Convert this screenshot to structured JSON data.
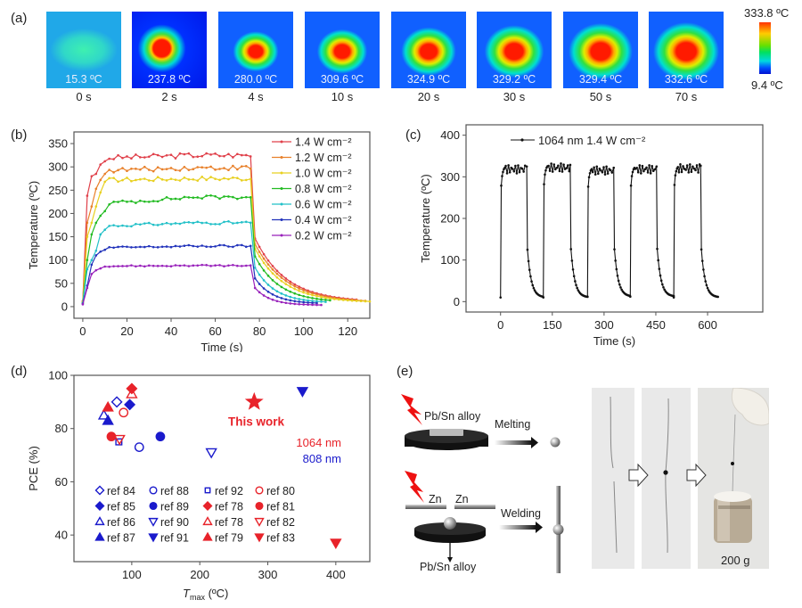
{
  "panels": {
    "a": {
      "label": "(a)",
      "frames": [
        {
          "temp": "15.3 ºC",
          "time": "0 s",
          "state": "ambient"
        },
        {
          "temp": "237.8 ºC",
          "time": "2 s",
          "state": "hot"
        },
        {
          "temp": "280.0 ºC",
          "time": "4 s",
          "state": "hot"
        },
        {
          "temp": "309.6 ºC",
          "time": "10 s",
          "state": "hot"
        },
        {
          "temp": "324.9 ºC",
          "time": "20 s",
          "state": "hot"
        },
        {
          "temp": "329.2 ºC",
          "time": "30 s",
          "state": "hot"
        },
        {
          "temp": "329.4 ºC",
          "time": "50 s",
          "state": "hot"
        },
        {
          "temp": "332.6 ºC",
          "time": "70 s",
          "state": "hot"
        }
      ],
      "colorbar": {
        "max_label": "333.8 ºC",
        "min_label": "9.4 ºC",
        "colors": [
          "#ff2a00",
          "#ffcc00",
          "#55e000",
          "#00d8d0",
          "#0018e0"
        ]
      }
    },
    "b": {
      "label": "(b)"
    },
    "c": {
      "label": "(c)"
    },
    "d": {
      "label": "(d)"
    },
    "e": {
      "label": "(e)",
      "top_material": "Pb/Sn alloy",
      "melting": "Melting",
      "zn_left": "Zn",
      "zn_right": "Zn",
      "welding": "Welding",
      "bottom_material": "Pb/Sn alloy",
      "weight_label": "200 g",
      "laser_color": "#ee1111"
    }
  },
  "chart_data": [
    {
      "id": "b",
      "type": "line",
      "title": "",
      "xlabel": "Time (s)",
      "ylabel": "Temperature (ºC)",
      "xlim": [
        -4,
        130
      ],
      "ylim": [
        -25,
        375
      ],
      "xticks": [
        0,
        20,
        40,
        60,
        80,
        100,
        120
      ],
      "yticks": [
        0,
        50,
        100,
        150,
        200,
        250,
        300,
        350
      ],
      "legend_position": "top-right",
      "series": [
        {
          "name": "1.4 W cm⁻²",
          "color": "#e0404a",
          "plateau": 325,
          "rise": [
            12,
            238,
            280,
            285,
            305,
            312
          ],
          "decay_end": 124,
          "decay_final": 10,
          "decay_tau": 14
        },
        {
          "name": "1.2 W cm⁻²",
          "color": "#e8802a",
          "plateau": 298,
          "rise": [
            10,
            180,
            215,
            253,
            272,
            285
          ],
          "decay_end": 128,
          "decay_final": 9,
          "decay_tau": 14
        },
        {
          "name": "1.0 W cm⁻²",
          "color": "#e8d020",
          "plateau": 275,
          "rise": [
            10,
            150,
            180,
            215,
            245,
            268
          ],
          "decay_end": 130,
          "decay_final": 9,
          "decay_tau": 13
        },
        {
          "name": "0.8 W cm⁻²",
          "color": "#22bb22",
          "plateau": 235,
          "rise": [
            8,
            100,
            155,
            180,
            195,
            205
          ],
          "decay_end": 112,
          "decay_final": 9,
          "decay_tau": 11
        },
        {
          "name": "0.6 W cm⁻²",
          "color": "#22c0c8",
          "plateau": 180,
          "rise": [
            8,
            80,
            100,
            120,
            155,
            165
          ],
          "decay_end": 110,
          "decay_final": 8,
          "decay_tau": 9
        },
        {
          "name": "0.4 W cm⁻²",
          "color": "#2233bb",
          "plateau": 130,
          "rise": [
            6,
            45,
            90,
            110,
            118,
            122
          ],
          "decay_end": 107,
          "decay_final": 6,
          "decay_tau": 8
        },
        {
          "name": "0.2 W cm⁻²",
          "color": "#9922bb",
          "plateau": 88,
          "rise": [
            5,
            40,
            70,
            78,
            82,
            86
          ],
          "decay_end": 108,
          "decay_final": 3,
          "decay_tau": 7
        }
      ]
    },
    {
      "id": "c",
      "type": "line",
      "title": "",
      "xlabel": "Time (s)",
      "ylabel": "Temperature (ºC)",
      "xlim": [
        -100,
        760
      ],
      "ylim": [
        -25,
        425
      ],
      "xticks": [
        0,
        150,
        300,
        450,
        600
      ],
      "yticks": [
        0,
        100,
        200,
        300,
        400
      ],
      "legend_position": "top-left",
      "series": [
        {
          "name": "1064 nm 1.4 W cm⁻²",
          "color": "#111111",
          "cycles": [
            {
              "on": 0,
              "off": 76,
              "end": 124,
              "peak": 328,
              "min": 10
            },
            {
              "on": 124,
              "off": 202,
              "end": 252,
              "peak": 332,
              "min": 10
            },
            {
              "on": 252,
              "off": 328,
              "end": 376,
              "peak": 325,
              "min": 12
            },
            {
              "on": 376,
              "off": 452,
              "end": 502,
              "peak": 328,
              "min": 12
            },
            {
              "on": 502,
              "off": 580,
              "end": 630,
              "peak": 330,
              "min": 10
            }
          ]
        }
      ]
    },
    {
      "id": "d",
      "type": "scatter",
      "title": "",
      "xlabel": "T_max (ºC)",
      "xlabel_main": "T",
      "xlabel_sub": "max",
      "xlabel_unit": " (ºC)",
      "ylabel": "PCE (%)",
      "xlim": [
        15,
        450
      ],
      "ylim": [
        30,
        100
      ],
      "xticks": [
        100,
        200,
        300,
        400
      ],
      "yticks": [
        40,
        60,
        80,
        100
      ],
      "legend_position": "bottom-left",
      "annotations": [
        {
          "text": "This work",
          "color": "#e8232a"
        },
        {
          "text": "1064 nm",
          "color": "#e8232a"
        },
        {
          "text": "808 nm",
          "color": "#1a1acc"
        }
      ],
      "highlight": {
        "label": "This work",
        "x": 280,
        "y": 90,
        "marker": "star",
        "color": "#e8232a"
      },
      "points": [
        {
          "ref": "ref 84",
          "marker": "diamond-open",
          "color": "#1a1acc",
          "x": 78,
          "y": 90
        },
        {
          "ref": "ref 85",
          "marker": "diamond",
          "color": "#1a1acc",
          "x": 97,
          "y": 89
        },
        {
          "ref": "ref 86",
          "marker": "triangle-up-open",
          "color": "#1a1acc",
          "x": 59,
          "y": 85
        },
        {
          "ref": "ref 87",
          "marker": "triangle-up",
          "color": "#1a1acc",
          "x": 65,
          "y": 83
        },
        {
          "ref": "ref 88",
          "marker": "circle-open",
          "color": "#1a1acc",
          "x": 111,
          "y": 73
        },
        {
          "ref": "ref 89",
          "marker": "circle",
          "color": "#1a1acc",
          "x": 142,
          "y": 77
        },
        {
          "ref": "ref 90",
          "marker": "triangle-down-open",
          "color": "#1a1acc",
          "x": 217,
          "y": 71
        },
        {
          "ref": "ref 91",
          "marker": "triangle-down",
          "color": "#1a1acc",
          "x": 351,
          "y": 94
        },
        {
          "ref": "ref 92",
          "marker": "square-open",
          "color": "#1a1acc",
          "x": 81,
          "y": 75
        },
        {
          "ref": "ref 80",
          "marker": "circle-open",
          "color": "#e8232a",
          "x": 88,
          "y": 86
        },
        {
          "ref": "ref 78",
          "marker": "diamond",
          "color": "#e8232a",
          "x": 100,
          "y": 95
        },
        {
          "ref": "ref 81",
          "marker": "circle",
          "color": "#e8232a",
          "x": 70,
          "y": 77
        },
        {
          "ref": "ref 78",
          "marker": "triangle-up-open",
          "color": "#e8232a",
          "x": 100,
          "y": 93
        },
        {
          "ref": "ref 82",
          "marker": "triangle-down-open",
          "color": "#e8232a",
          "x": 82,
          "y": 76
        },
        {
          "ref": "ref 79",
          "marker": "triangle-up",
          "color": "#e8232a",
          "x": 65,
          "y": 88
        },
        {
          "ref": "ref 83",
          "marker": "triangle-down",
          "color": "#e8232a",
          "x": 400,
          "y": 37
        }
      ],
      "legend_order": [
        [
          "ref 84",
          "ref 88",
          "ref 92",
          "ref 80"
        ],
        [
          "ref 85",
          "ref 89",
          "ref 78",
          "ref 81"
        ],
        [
          "ref 86",
          "ref 90",
          "ref 78",
          "ref 82"
        ],
        [
          "ref 87",
          "ref 91",
          "ref 79",
          "ref 83"
        ]
      ],
      "legend_markers": [
        [
          [
            "diamond-open",
            "#1a1acc"
          ],
          [
            "circle-open",
            "#1a1acc"
          ],
          [
            "square-open",
            "#1a1acc"
          ],
          [
            "circle-open",
            "#e8232a"
          ]
        ],
        [
          [
            "diamond",
            "#1a1acc"
          ],
          [
            "circle",
            "#1a1acc"
          ],
          [
            "diamond",
            "#e8232a"
          ],
          [
            "circle",
            "#e8232a"
          ]
        ],
        [
          [
            "triangle-up-open",
            "#1a1acc"
          ],
          [
            "triangle-down-open",
            "#1a1acc"
          ],
          [
            "triangle-up-open",
            "#e8232a"
          ],
          [
            "triangle-down-open",
            "#e8232a"
          ]
        ],
        [
          [
            "triangle-up",
            "#1a1acc"
          ],
          [
            "triangle-down",
            "#1a1acc"
          ],
          [
            "triangle-up",
            "#e8232a"
          ],
          [
            "triangle-down",
            "#e8232a"
          ]
        ]
      ]
    }
  ]
}
